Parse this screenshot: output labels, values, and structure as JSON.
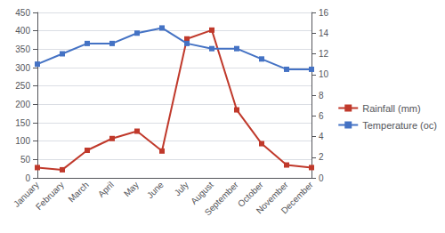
{
  "chart_data": {
    "type": "line",
    "categories": [
      "January",
      "February",
      "March",
      "April",
      "May",
      "June",
      "July",
      "August",
      "September",
      "October",
      "November",
      "December"
    ],
    "series": [
      {
        "name": "Rainfall (mm)",
        "color": "#c0392b",
        "values": [
          28,
          22,
          75,
          107,
          127,
          73,
          378,
          402,
          185,
          93,
          35,
          28
        ]
      },
      {
        "name": "Temperature (oc)",
        "color": "#4472c4",
        "axis": "y2",
        "values": [
          11,
          12,
          13,
          13,
          14,
          14.5,
          13,
          12.5,
          12.5,
          11.5,
          10.5,
          10.5
        ]
      }
    ],
    "ylim": [
      0,
      450
    ],
    "yticks": [
      0,
      50,
      100,
      150,
      200,
      250,
      300,
      350,
      400,
      450
    ],
    "y2lim": [
      0,
      16
    ],
    "y2ticks": [
      0,
      2,
      4,
      6,
      8,
      10,
      12,
      14,
      16
    ],
    "marker": "square",
    "grid": true,
    "legend": "right"
  }
}
